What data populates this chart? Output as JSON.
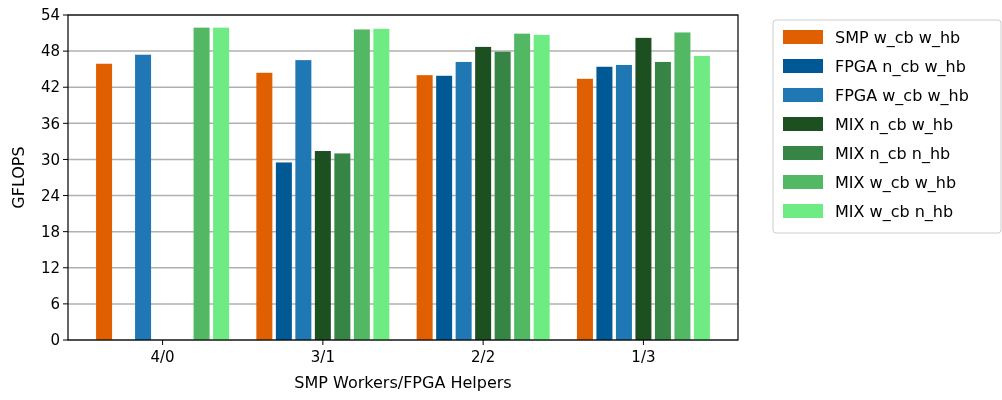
{
  "chart_data": {
    "type": "bar",
    "xlabel": "SMP Workers/FPGA Helpers",
    "ylabel": "GFLOPS",
    "categories": [
      "4/0",
      "3/1",
      "2/2",
      "1/3"
    ],
    "series": [
      {
        "name": "SMP w_cb w_hb",
        "color": "#e05f00",
        "values": [
          45.9,
          44.4,
          44.0,
          43.4
        ]
      },
      {
        "name": "FPGA n_cb w_hb",
        "color": "#005895",
        "values": [
          null,
          29.5,
          43.9,
          45.4
        ]
      },
      {
        "name": "FPGA w_cb w_hb",
        "color": "#1f77b4",
        "values": [
          47.4,
          46.5,
          46.2,
          45.7
        ]
      },
      {
        "name": "MIX n_cb w_hb",
        "color": "#1d5021",
        "values": [
          null,
          31.4,
          48.7,
          50.2
        ]
      },
      {
        "name": "MIX n_cb n_hb",
        "color": "#378544",
        "values": [
          null,
          31.0,
          47.9,
          46.2
        ]
      },
      {
        "name": "MIX w_cb w_hb",
        "color": "#53b863",
        "values": [
          51.9,
          51.6,
          50.9,
          51.1
        ]
      },
      {
        "name": "MIX w_cb n_hb",
        "color": "#6feb84",
        "values": [
          51.9,
          51.7,
          50.7,
          47.2
        ]
      }
    ],
    "ylim": [
      0,
      54
    ],
    "yticks": [
      0,
      6,
      12,
      18,
      24,
      30,
      36,
      42,
      48,
      54
    ],
    "grid": "y",
    "legend": "right"
  }
}
